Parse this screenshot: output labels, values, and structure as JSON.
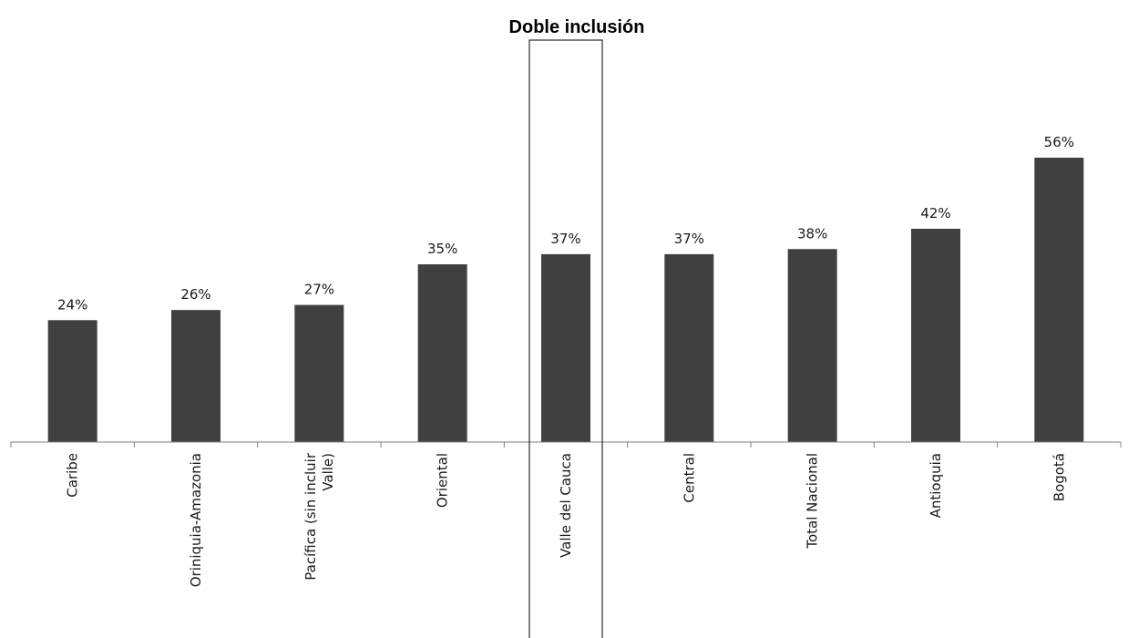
{
  "chart_data": {
    "type": "bar",
    "title": "Doble inclusión",
    "xlabel": "",
    "ylabel": "",
    "categories": [
      [
        "Caribe"
      ],
      [
        "Oriniquia-Amazonia"
      ],
      [
        "Pacífica (sin incluir",
        "Valle)"
      ],
      [
        "Oriental"
      ],
      [
        "Valle del Cauca"
      ],
      [
        "Central"
      ],
      [
        "Total Nacional"
      ],
      [
        "Antioquia"
      ],
      [
        "Bogotá"
      ]
    ],
    "values": [
      24,
      26,
      27,
      35,
      37,
      37,
      38,
      42,
      56
    ],
    "value_labels": [
      "24%",
      "26%",
      "27%",
      "35%",
      "37%",
      "37%",
      "38%",
      "42%",
      "56%"
    ],
    "ylim": [
      0,
      60
    ],
    "grid": false,
    "legend": "none",
    "highlighted_category": "Valle del Cauca",
    "bar_color": "#404040",
    "axis_color": "#7f7f7f",
    "highlight_box_color": "#000000"
  }
}
